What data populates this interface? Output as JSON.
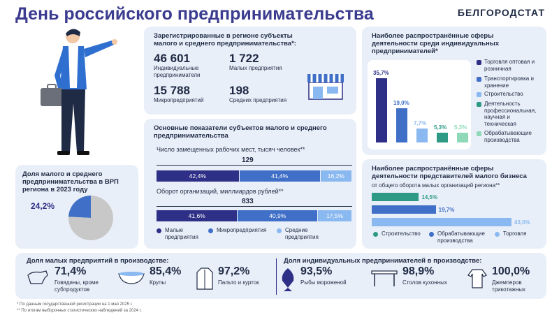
{
  "header": {
    "title": "День российского предпринимательства",
    "brand": "БЕЛГОРОДСТАТ"
  },
  "registered": {
    "heading": "Зарегистрированные в регионе субъекты малого и среднего предпринимательства*:",
    "items": [
      {
        "value": "46 601",
        "label": "Индивидуальные предприниматели"
      },
      {
        "value": "1 722",
        "label": "Малых предприятия"
      },
      {
        "value": "15 788",
        "label": "Микропредприятий"
      },
      {
        "value": "198",
        "label": "Средних предприятия"
      }
    ]
  },
  "vrp": {
    "heading": "Доля малого и среднего предпринимательства в ВРП региона в 2023 году",
    "value": "24,2%"
  },
  "indicators": {
    "heading": "Основные показатели субъектов малого и среднего предпринимательства",
    "jobs_label": "Число замещенных рабочих мест, тысяч человек**",
    "jobs_total": "129",
    "turnover_label": "Оборот организаций, миллиардов рублей**",
    "turnover_total": "833",
    "legend": [
      "Малые предприятия",
      "Микропредприятия",
      "Средние предприятия"
    ]
  },
  "ip_spheres": {
    "heading": "Наиболее распространённые сферы деятельности среди индивидуальных предпринимателей*"
  },
  "small_spheres": {
    "heading": "Наиболее распространённые сферы деятельности представителей малого бизнеса",
    "sub": "от общего оборота малых организаций региона**"
  },
  "chart_data": [
    {
      "type": "bar",
      "title": "Число замещенных рабочих мест, тысяч человек**",
      "categories": [
        "Малые предприятия",
        "Микропредприятия",
        "Средние предприятия"
      ],
      "values": [
        42.4,
        41.4,
        16.2
      ],
      "labels": [
        "42,4%",
        "41,4%",
        "16,2%"
      ],
      "colors": [
        "#2e2f86",
        "#3f6fc6",
        "#8ab8f0"
      ]
    },
    {
      "type": "bar",
      "title": "Оборот организаций, миллиардов рублей**",
      "categories": [
        "Малые предприятия",
        "Микропредприятия",
        "Средние предприятия"
      ],
      "values": [
        41.6,
        40.9,
        17.5
      ],
      "labels": [
        "41,6%",
        "40,9%",
        "17,5%"
      ],
      "colors": [
        "#2e2f86",
        "#3f6fc6",
        "#8ab8f0"
      ]
    },
    {
      "type": "bar",
      "categories": [
        "Торговля оптовая и розничная",
        "Транспортировка и хранение",
        "Строительство",
        "Деятельность профессиональная, научная и техническая",
        "Обрабатывающие производства"
      ],
      "values": [
        35.7,
        19.0,
        7.7,
        5.3,
        5.3
      ],
      "labels": [
        "35,7%",
        "19,0%",
        "7,7%",
        "5,3%",
        "5,3%"
      ],
      "colors": [
        "#2e2f86",
        "#3f6fc6",
        "#8ab8f0",
        "#2e9a86",
        "#8fd9b8"
      ]
    },
    {
      "type": "bar",
      "categories": [
        "Строительство",
        "Обрабатывающие производства",
        "Торговля"
      ],
      "values": [
        14.5,
        19.7,
        43.0
      ],
      "labels": [
        "14,5%",
        "19,7%",
        "43,0%"
      ],
      "colors": [
        "#2e9a86",
        "#3f6fc6",
        "#8ab8f0"
      ]
    },
    {
      "type": "pie",
      "title": "Доля малого и среднего предпринимательства в ВРП региона в 2023 году",
      "values": [
        24.2,
        75.8
      ],
      "colors": [
        "#3f6fc6",
        "#c8c8c8"
      ]
    }
  ],
  "production": {
    "small_heading": "Доля малых предприятий в производстве:",
    "ip_heading": "Доля индивидуальных предпринимателей в производстве:",
    "small": [
      {
        "pct": "71,4%",
        "label": "Говядины, кроме субпродуктов"
      },
      {
        "pct": "85,4%",
        "label": "Крупы"
      },
      {
        "pct": "97,2%",
        "label": "Пальто и курток"
      }
    ],
    "ip": [
      {
        "pct": "93,5%",
        "label": "Рыбы мороженой"
      },
      {
        "pct": "98,9%",
        "label": "Столов кухонных"
      },
      {
        "pct": "100,0%",
        "label": "Джемперов трикотажных"
      }
    ]
  },
  "footnotes": [
    "* По данным государственной регистрации на 1 мая 2025 г.",
    "** По итогам выборочных статистических наблюдений за 2024 г."
  ],
  "colors": {
    "dark": "#2e2f86",
    "mid": "#3f6fc6",
    "light": "#8ab8f0",
    "teal": "#2e9a86",
    "mint": "#8fd9b8"
  },
  "icons": [
    "person-with-briefcase",
    "shop-icon",
    "cow-icon",
    "bowl-icon",
    "jacket-icon",
    "fish-icon",
    "table-icon",
    "sweater-icon"
  ]
}
